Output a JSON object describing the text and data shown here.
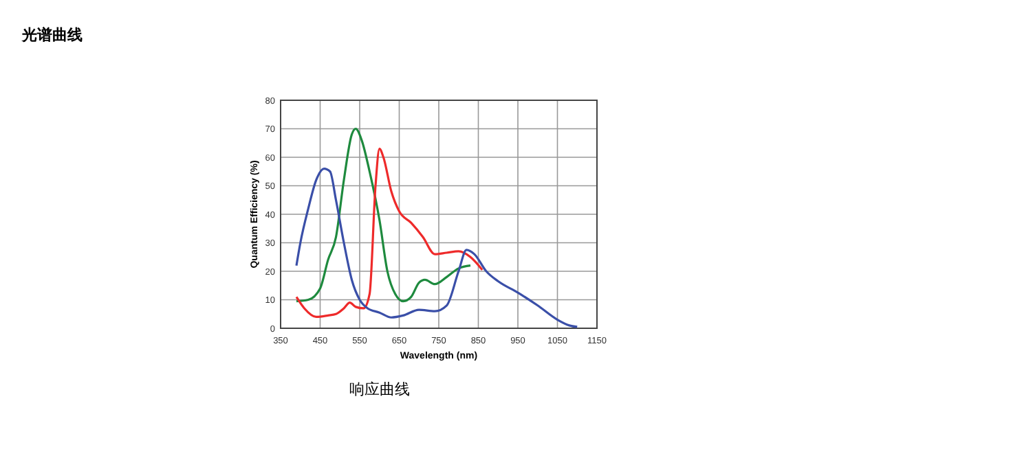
{
  "chart_data": {
    "type": "line",
    "title": "光谱曲线",
    "xlabel": "Wavelength (nm)",
    "ylabel": "Quantum Efficiency (%)",
    "annotations": [
      "响应曲线"
    ],
    "xlim": [
      350,
      1150
    ],
    "xticks": [
      350,
      450,
      550,
      650,
      750,
      850,
      950,
      1050,
      1150
    ],
    "ylim": [
      0,
      80
    ],
    "yticks": [
      0,
      10,
      20,
      30,
      40,
      50,
      60,
      70,
      80
    ],
    "grid": true,
    "marker": "none",
    "line_style": "solid",
    "series": [
      {
        "color": "#1e8a3e",
        "x": [
          390,
          420,
          450,
          470,
          490,
          510,
          530,
          540,
          555,
          575,
          600,
          620,
          640,
          660,
          680,
          700,
          715,
          740,
          770,
          800,
          830
        ],
        "values": [
          9.5,
          10,
          14,
          24,
          32,
          52,
          68,
          70,
          66,
          55,
          38,
          20,
          12,
          9.5,
          11,
          16,
          17,
          15.5,
          18,
          21,
          22
        ]
      },
      {
        "color": "#ee2a2a",
        "x": [
          390,
          410,
          440,
          470,
          490,
          510,
          525,
          540,
          560,
          575,
          590,
          600,
          610,
          630,
          650,
          680,
          710,
          740,
          770,
          800,
          830,
          860
        ],
        "values": [
          11,
          7,
          4,
          4.5,
          5,
          7,
          9,
          7.5,
          7,
          12,
          50,
          63,
          60,
          48,
          41,
          37,
          32,
          26,
          26.5,
          27,
          25,
          20.5
        ]
      },
      {
        "color": "#3a4fa8",
        "x": [
          390,
          400,
          420,
          440,
          460,
          475,
          490,
          510,
          530,
          550,
          570,
          600,
          630,
          660,
          700,
          740,
          770,
          800,
          820,
          840,
          870,
          900,
          950,
          1000,
          1050,
          1080,
          1100
        ],
        "values": [
          22,
          30,
          42,
          52,
          56,
          55,
          45,
          30,
          17,
          10,
          7,
          5.5,
          3.8,
          4.5,
          6.5,
          6,
          8,
          20,
          27.5,
          26,
          20,
          16.5,
          12.5,
          8,
          3,
          1,
          0.5
        ]
      }
    ]
  }
}
